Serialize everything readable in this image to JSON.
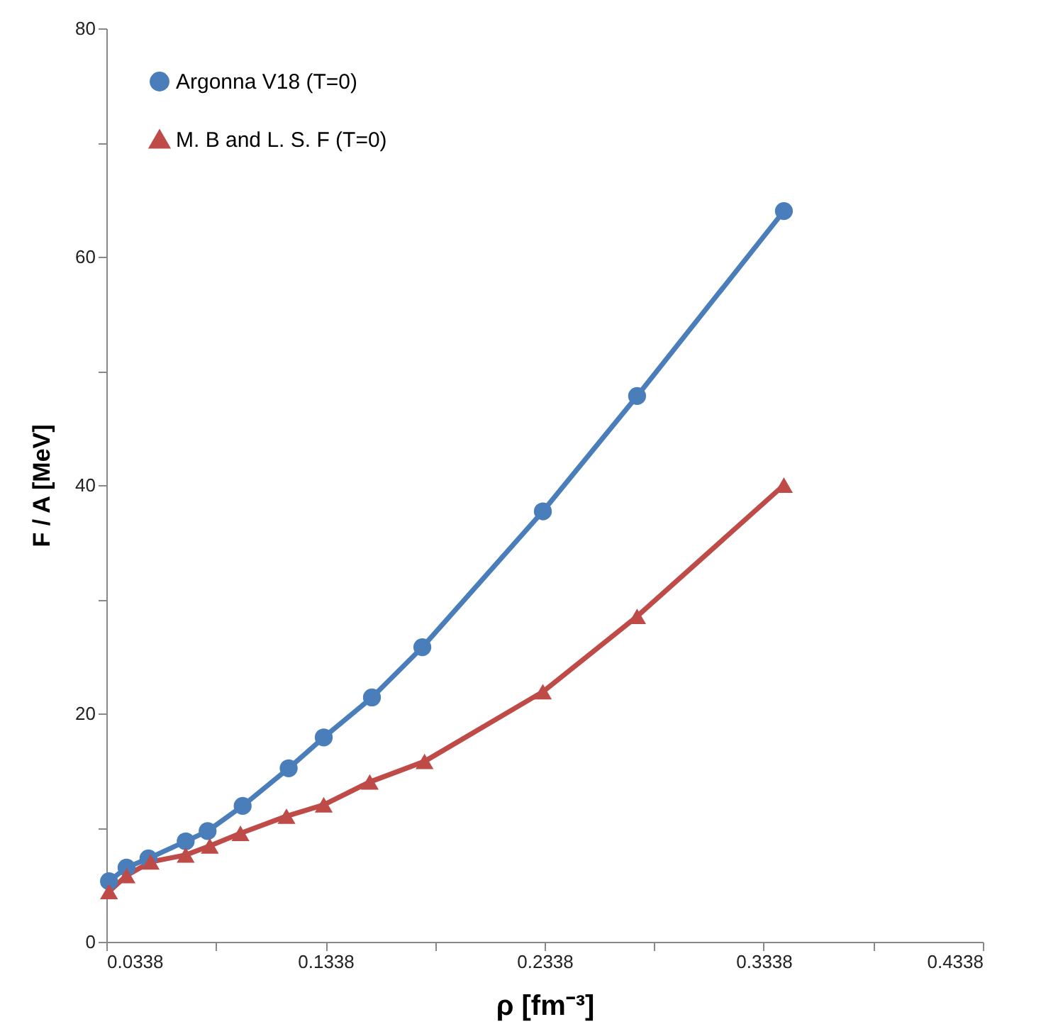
{
  "chart_data": {
    "type": "line",
    "xlabel": "ρ [fm⁻³]",
    "ylabel": "F / A [MeV]",
    "xlim": [
      0.0338,
      0.4338
    ],
    "xticks": [
      0.0338,
      {
        "value": 0.0838,
        "label": null
      },
      0.1338,
      {
        "value": 0.1838,
        "label": null
      },
      0.2338,
      {
        "value": 0.2838,
        "label": null
      },
      0.3338,
      {
        "value": 0.3838,
        "label": null
      },
      0.4338
    ],
    "ylim": [
      0,
      80
    ],
    "yticks": [
      0,
      {
        "value": 10,
        "label": null
      },
      20,
      {
        "value": 30,
        "label": null
      },
      40,
      {
        "value": 50,
        "label": null
      },
      60,
      {
        "value": 70,
        "label": null
      },
      80
    ],
    "grid": false,
    "legend": "top left",
    "line_style": "solid",
    "series": [
      {
        "name": "Argonna V18  (T=0)",
        "color": "#4a7ebb",
        "marker": "circle",
        "x": [
          0.035,
          0.043,
          0.053,
          0.07,
          0.08,
          0.096,
          0.117,
          0.133,
          0.155,
          0.178,
          0.233,
          0.276,
          0.343
        ],
        "values": [
          5.3,
          6.5,
          7.3,
          8.8,
          9.7,
          11.9,
          15.2,
          17.9,
          21.4,
          25.8,
          37.7,
          47.8,
          64.0
        ]
      },
      {
        "name": "M. B and L. S. F (T=0)",
        "color": "#be4b48",
        "marker": "triangle",
        "x": [
          0.035,
          0.043,
          0.054,
          0.07,
          0.081,
          0.095,
          0.116,
          0.133,
          0.154,
          0.179,
          0.233,
          0.276,
          0.343
        ],
        "values": [
          4.4,
          5.8,
          7.0,
          7.6,
          8.4,
          9.5,
          11.0,
          12.0,
          14.0,
          15.8,
          21.9,
          28.5,
          40.0
        ]
      }
    ]
  }
}
